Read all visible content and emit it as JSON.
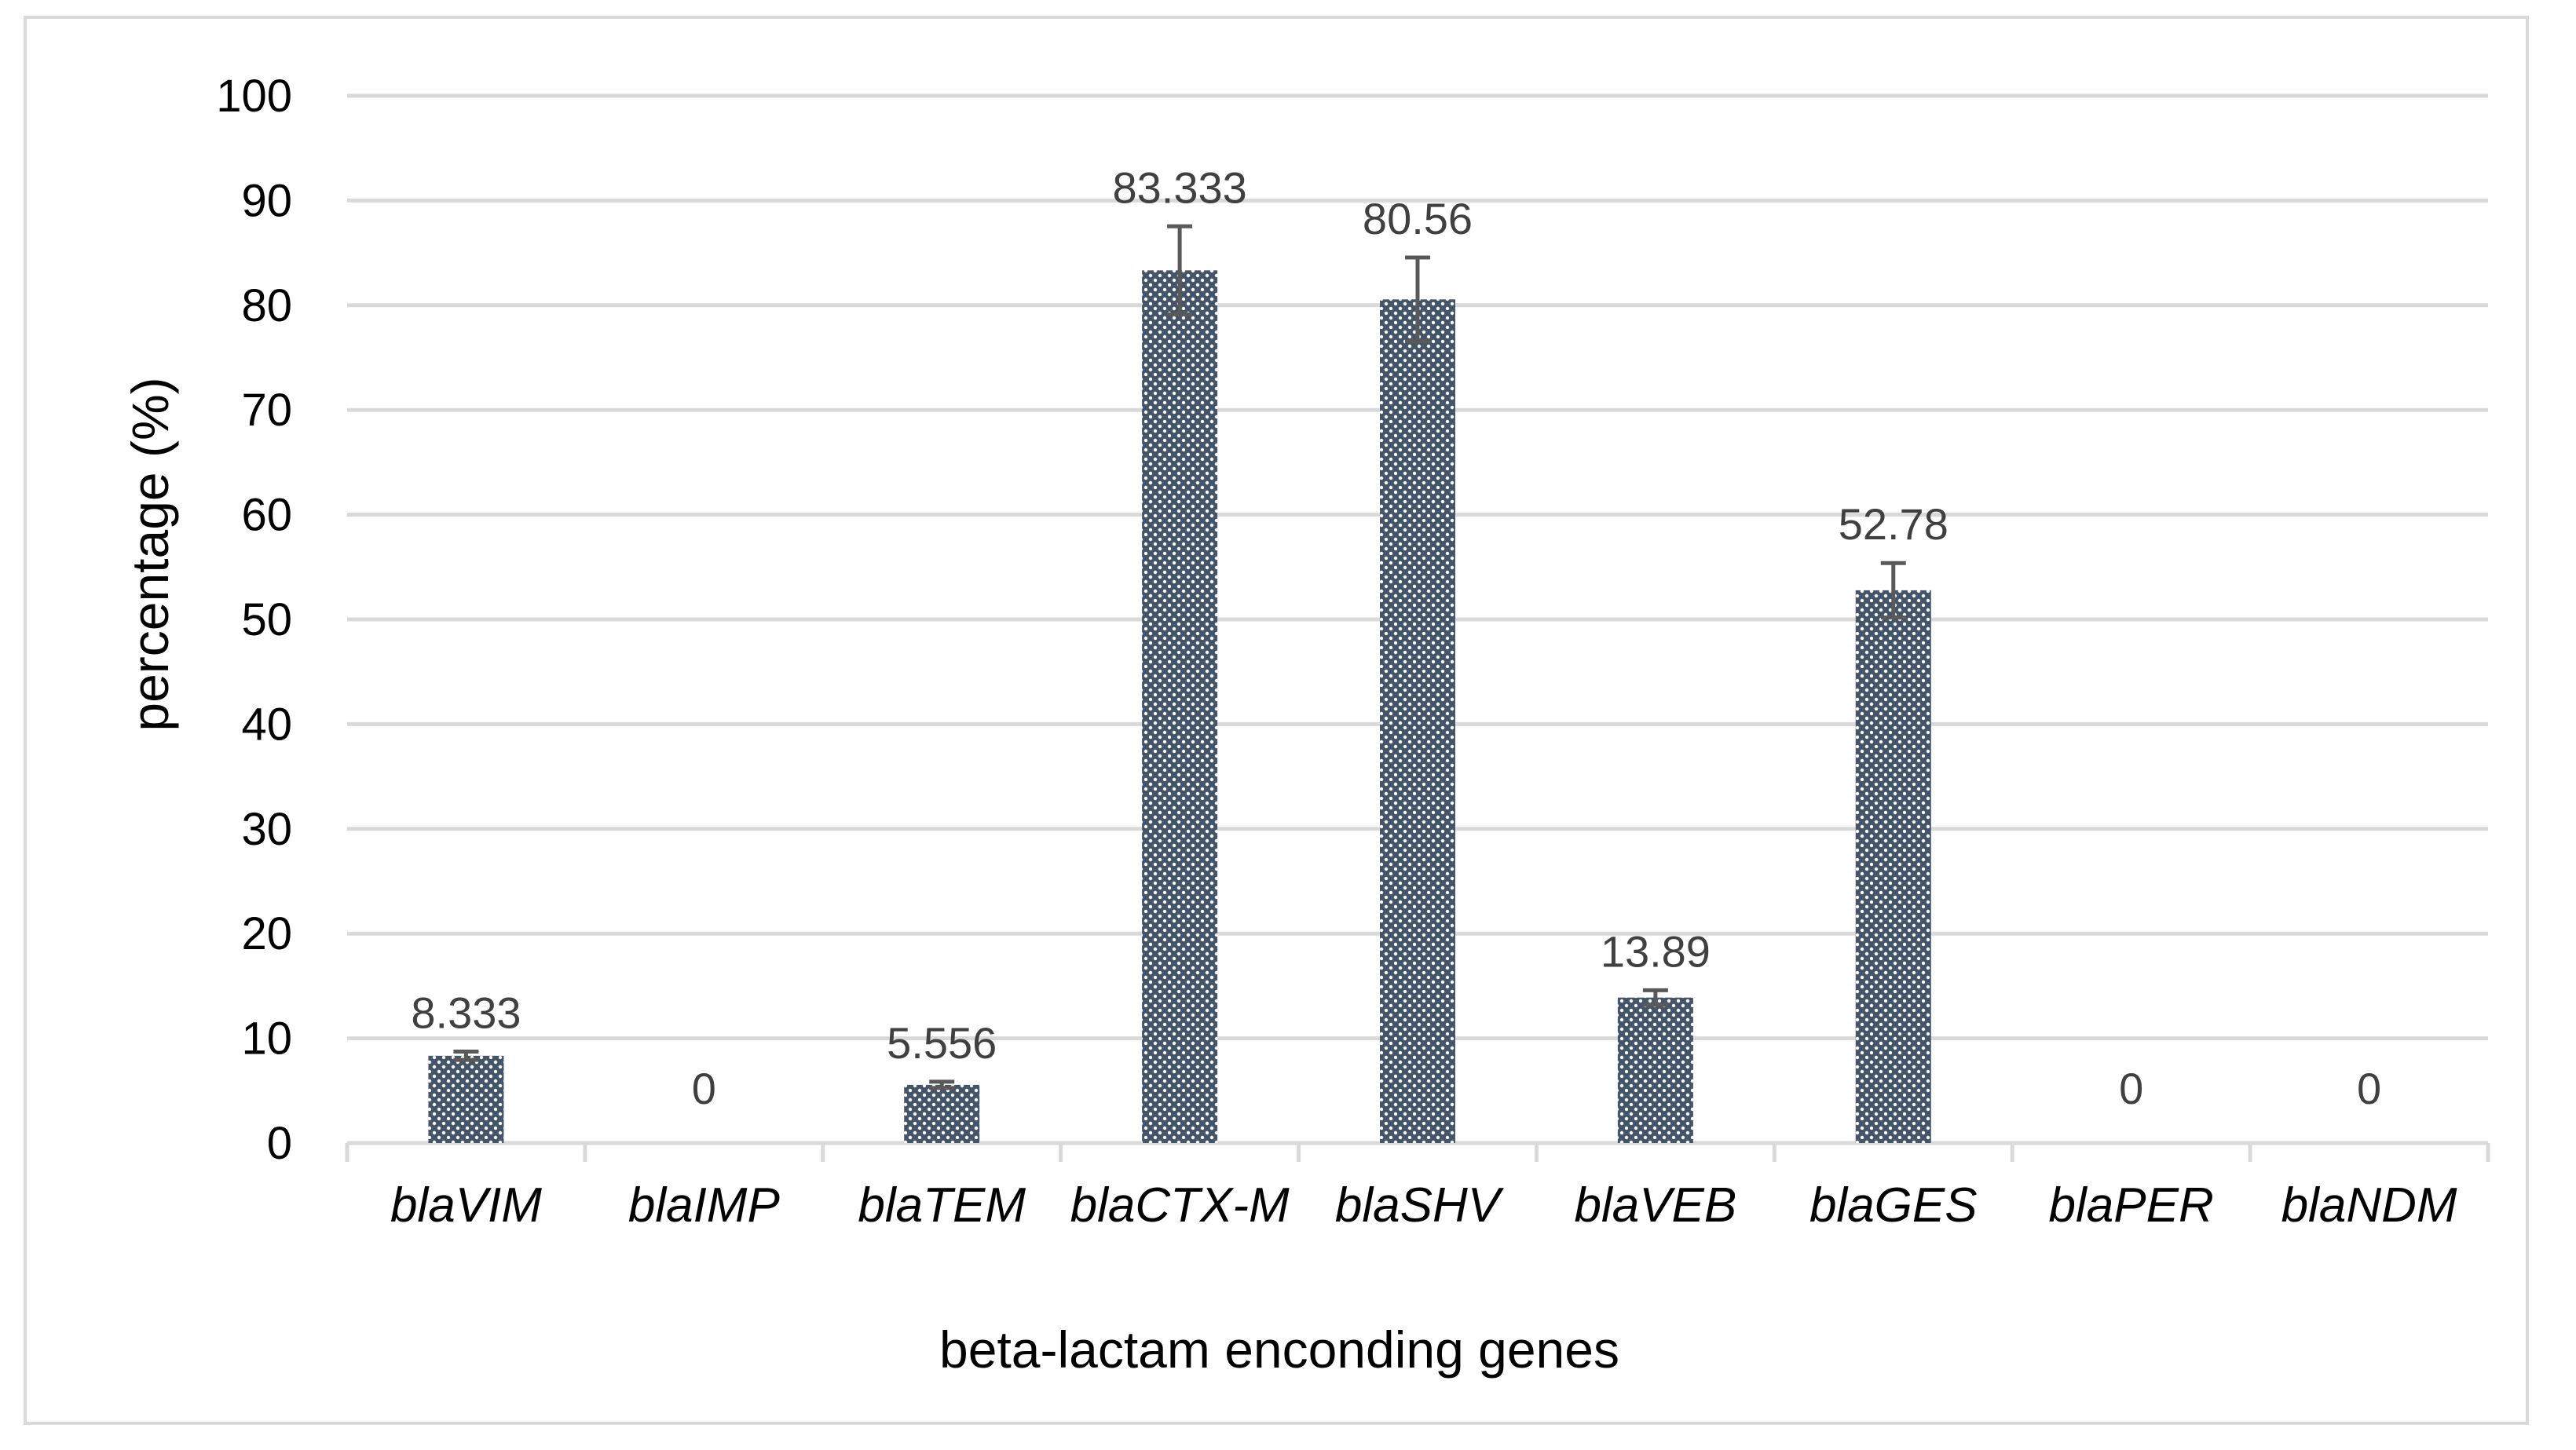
{
  "chart_data": {
    "type": "bar",
    "title": "",
    "xlabel": "beta-lactam enconding genes",
    "ylabel": "percentage (%)",
    "ylim": [
      0,
      100
    ],
    "yticks": [
      0,
      10,
      20,
      30,
      40,
      50,
      60,
      70,
      80,
      90,
      100
    ],
    "grid": true,
    "legend": "none",
    "categories": [
      "blaVIM",
      "blaIMP",
      "blaTEM",
      "blaCTX-M",
      "blaSHV",
      "blaVEB",
      "blaGES",
      "blaPER",
      "blaNDM"
    ],
    "values": [
      8.333,
      0,
      5.556,
      83.333,
      80.56,
      13.89,
      52.78,
      0,
      0
    ],
    "labels": [
      "8.333",
      "0",
      "5.556",
      "83.333",
      "80.56",
      "13.89",
      "52.78",
      "0",
      "0"
    ],
    "error": [
      0.4,
      0,
      0.3,
      4.2,
      4.0,
      0.7,
      2.6,
      0,
      0
    ],
    "colors": {
      "bar": "#44546a",
      "bar_dots": "#ffffff",
      "grid": "#d9d9d9",
      "error_bar": "#595959",
      "value_label": "#404040"
    }
  }
}
